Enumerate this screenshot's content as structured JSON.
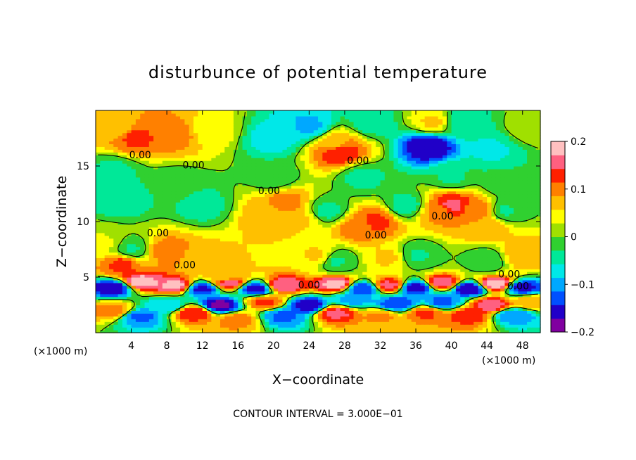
{
  "chart_data": {
    "type": "heatmap",
    "title": "disturbunce of potential temperature",
    "xlabel": "X−coordinate",
    "ylabel": "Z−coordinate",
    "x_unit_left": "(×1000 m)",
    "x_unit_right": "(×1000 m)",
    "footer": "CONTOUR INTERVAL = 3.000E−01",
    "xlim": [
      0,
      50
    ],
    "ylim": [
      0,
      20
    ],
    "x_ticks": [
      {
        "value": 4,
        "label": "4"
      },
      {
        "value": 8,
        "label": "8"
      },
      {
        "value": 12,
        "label": "12"
      },
      {
        "value": 16,
        "label": "16"
      },
      {
        "value": 20,
        "label": "20"
      },
      {
        "value": 24,
        "label": "24"
      },
      {
        "value": 28,
        "label": "28"
      },
      {
        "value": 32,
        "label": "32"
      },
      {
        "value": 36,
        "label": "36"
      },
      {
        "value": 40,
        "label": "40"
      },
      {
        "value": 44,
        "label": "44"
      },
      {
        "value": 48,
        "label": "48"
      }
    ],
    "y_ticks": [
      {
        "value": 5,
        "label": "5"
      },
      {
        "value": 10,
        "label": "10"
      },
      {
        "value": 15,
        "label": "15"
      }
    ],
    "colorbar": {
      "min": -0.2,
      "max": 0.2,
      "ticks": [
        {
          "value": 0.2,
          "label": "0.2"
        },
        {
          "value": 0.1,
          "label": "0.1"
        },
        {
          "value": 0,
          "label": "0"
        },
        {
          "value": -0.1,
          "label": "−0.1"
        },
        {
          "value": -0.2,
          "label": "−0.2"
        }
      ],
      "colors": [
        "#8000a0",
        "#2000c8",
        "#0050ff",
        "#00a8ff",
        "#00e8e8",
        "#00e898",
        "#30d030",
        "#a0e000",
        "#ffff00",
        "#ffc000",
        "#ff8000",
        "#ff2000",
        "#ff6080",
        "#ffc0c0"
      ]
    },
    "contour_labels": [
      {
        "x": 5,
        "y": 16.0,
        "text": "0.00"
      },
      {
        "x": 11,
        "y": 15.1,
        "text": "0.00"
      },
      {
        "x": 29.5,
        "y": 15.5,
        "text": "0.00"
      },
      {
        "x": 19.5,
        "y": 12.8,
        "text": "0.00"
      },
      {
        "x": 39,
        "y": 10.5,
        "text": "0.00"
      },
      {
        "x": 7,
        "y": 9.0,
        "text": "0.00"
      },
      {
        "x": 31.5,
        "y": 8.8,
        "text": "0.00"
      },
      {
        "x": 10,
        "y": 6.1,
        "text": "0.00"
      },
      {
        "x": 46.5,
        "y": 5.3,
        "text": "0.00"
      },
      {
        "x": 47.5,
        "y": 4.2,
        "text": "0.00"
      },
      {
        "x": 24,
        "y": 4.3,
        "text": "0.00"
      }
    ],
    "features": [
      {
        "x": 4.5,
        "z": 17.6,
        "value": 0.12
      },
      {
        "x": 9,
        "z": 17.9,
        "value": 0.1
      },
      {
        "x": 2.5,
        "z": 18.5,
        "value": 0.07
      },
      {
        "x": 13,
        "z": 18.2,
        "value": 0.04
      },
      {
        "x": 20,
        "z": 17.5,
        "value": -0.07
      },
      {
        "x": 24,
        "z": 18.6,
        "value": -0.09
      },
      {
        "x": 27.5,
        "z": 16.3,
        "value": 0.14
      },
      {
        "x": 27,
        "z": 17.0,
        "value": 0.08
      },
      {
        "x": 31,
        "z": 19.0,
        "value": -0.04
      },
      {
        "x": 37.5,
        "z": 16.8,
        "value": -0.17
      },
      {
        "x": 44.5,
        "z": 16.5,
        "value": -0.06
      },
      {
        "x": 41,
        "z": 19.0,
        "value": -0.05
      },
      {
        "x": 49,
        "z": 18.5,
        "value": 0.02
      },
      {
        "x": 38,
        "z": 19.0,
        "value": 0.06
      },
      {
        "x": 2,
        "z": 14.5,
        "value": -0.035
      },
      {
        "x": 9,
        "z": 13.3,
        "value": -0.02
      },
      {
        "x": 30,
        "z": 14.0,
        "value": -0.035
      },
      {
        "x": 40,
        "z": 14.0,
        "value": -0.03
      },
      {
        "x": 46,
        "z": 13.5,
        "value": -0.025
      },
      {
        "x": 20,
        "z": 14.0,
        "value": -0.02
      },
      {
        "x": 3,
        "z": 12.0,
        "value": -0.045
      },
      {
        "x": 12,
        "z": 11.5,
        "value": -0.04
      },
      {
        "x": 26,
        "z": 11.0,
        "value": -0.035
      },
      {
        "x": 35,
        "z": 11.5,
        "value": -0.04
      },
      {
        "x": 46,
        "z": 11.0,
        "value": -0.03
      },
      {
        "x": 4,
        "z": 7.5,
        "value": -0.03
      },
      {
        "x": 27,
        "z": 6.5,
        "value": -0.03
      },
      {
        "x": 36,
        "z": 7.0,
        "value": -0.03
      },
      {
        "x": 44,
        "z": 6.5,
        "value": -0.02
      },
      {
        "x": 21.5,
        "z": 11.7,
        "value": 0.1
      },
      {
        "x": 19.5,
        "z": 10.6,
        "value": 0.08
      },
      {
        "x": 23,
        "z": 10.2,
        "value": 0.06
      },
      {
        "x": 31.5,
        "z": 10.0,
        "value": 0.12
      },
      {
        "x": 29.5,
        "z": 9.5,
        "value": 0.1
      },
      {
        "x": 40,
        "z": 11.5,
        "value": 0.15
      },
      {
        "x": 43,
        "z": 11.0,
        "value": 0.1
      },
      {
        "x": 38.5,
        "z": 11.0,
        "value": 0.09
      },
      {
        "x": 44,
        "z": 9.5,
        "value": 0.08
      },
      {
        "x": 8,
        "z": 7.4,
        "value": 0.1
      },
      {
        "x": 3,
        "z": 6.2,
        "value": 0.12
      },
      {
        "x": 12,
        "z": 6.5,
        "value": 0.07
      },
      {
        "x": 25,
        "z": 7.0,
        "value": 0.06
      },
      {
        "x": 33,
        "z": 6.8,
        "value": 0.06
      },
      {
        "x": 48,
        "z": 7.0,
        "value": 0.08
      },
      {
        "x": 1,
        "z": 8.0,
        "value": 0.03
      },
      {
        "x": 14.5,
        "z": 5.2,
        "value": 0.06
      },
      {
        "x": 5,
        "z": 4.6,
        "value": 0.19
      },
      {
        "x": 9,
        "z": 4.3,
        "value": 0.18
      },
      {
        "x": 15,
        "z": 4.5,
        "value": 0.16
      },
      {
        "x": 21,
        "z": 4.3,
        "value": 0.17
      },
      {
        "x": 27,
        "z": 4.4,
        "value": 0.18
      },
      {
        "x": 33,
        "z": 4.3,
        "value": 0.15
      },
      {
        "x": 39,
        "z": 4.5,
        "value": 0.16
      },
      {
        "x": 45,
        "z": 4.4,
        "value": 0.19
      },
      {
        "x": 2,
        "z": 4.1,
        "value": -0.17
      },
      {
        "x": 12,
        "z": 4.0,
        "value": -0.15
      },
      {
        "x": 18,
        "z": 4.0,
        "value": -0.16
      },
      {
        "x": 30,
        "z": 4.0,
        "value": -0.14
      },
      {
        "x": 36,
        "z": 4.1,
        "value": -0.16
      },
      {
        "x": 42,
        "z": 4.0,
        "value": -0.17
      },
      {
        "x": 48,
        "z": 4.1,
        "value": -0.15
      },
      {
        "x": 2,
        "z": 2.0,
        "value": 0.1
      },
      {
        "x": 5,
        "z": 1.5,
        "value": -0.12
      },
      {
        "x": 8,
        "z": 2.5,
        "value": -0.08
      },
      {
        "x": 11,
        "z": 1.8,
        "value": 0.14
      },
      {
        "x": 14,
        "z": 2.5,
        "value": -0.18
      },
      {
        "x": 16,
        "z": 1.2,
        "value": 0.1
      },
      {
        "x": 19,
        "z": 2.8,
        "value": 0.12
      },
      {
        "x": 21,
        "z": 1.5,
        "value": -0.12
      },
      {
        "x": 24,
        "z": 2.5,
        "value": -0.16
      },
      {
        "x": 27,
        "z": 1.8,
        "value": 0.15
      },
      {
        "x": 29,
        "z": 3.0,
        "value": -0.1
      },
      {
        "x": 32,
        "z": 1.5,
        "value": 0.09
      },
      {
        "x": 34,
        "z": 2.6,
        "value": -0.14
      },
      {
        "x": 37,
        "z": 1.8,
        "value": 0.12
      },
      {
        "x": 39,
        "z": 2.8,
        "value": -0.12
      },
      {
        "x": 42,
        "z": 1.6,
        "value": 0.13
      },
      {
        "x": 44.5,
        "z": 2.5,
        "value": 0.16
      },
      {
        "x": 47,
        "z": 1.6,
        "value": -0.11
      },
      {
        "x": 49,
        "z": 2.8,
        "value": 0.08
      }
    ]
  }
}
